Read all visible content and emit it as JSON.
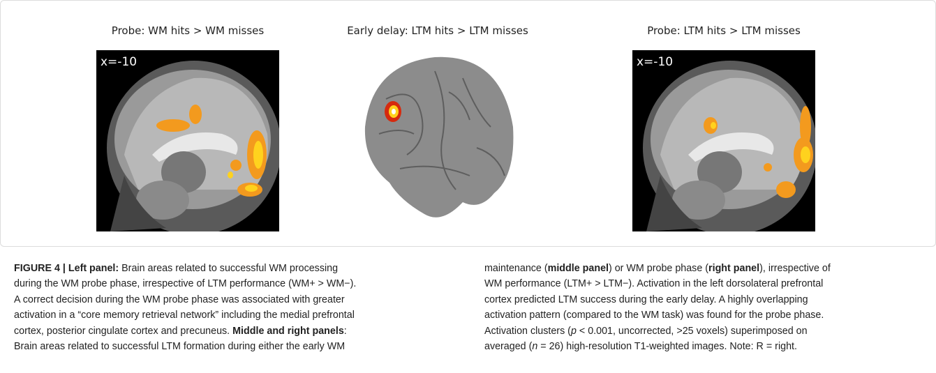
{
  "figure": {
    "panels": [
      {
        "title": "Probe: WM hits > WM misses",
        "slice_label": "x=-10"
      },
      {
        "title": "Early delay: LTM hits > LTM misses"
      },
      {
        "title": "Probe: LTM hits > LTM misses",
        "slice_label": "x=-10"
      }
    ],
    "caption": {
      "columns": [
        [
          [
            {
              "text": "FIGURE 4 | Left panel:",
              "bold": true
            },
            {
              "text": " Brain areas related to successful WM processing"
            }
          ],
          [
            {
              "text": "during the WM probe phase, irrespective of LTM performance (WM+ > WM−)."
            }
          ],
          [
            {
              "text": "A correct decision during the WM probe phase was associated with greater"
            }
          ],
          [
            {
              "text": "activation in a “core memory retrieval network” including the medial prefrontal"
            }
          ],
          [
            {
              "text": "cortex, posterior cingulate cortex and precuneus. "
            },
            {
              "text": "Middle and right panels",
              "bold": true
            },
            {
              "text": ":"
            }
          ],
          [
            {
              "text": "Brain areas related to successful LTM formation during either the early WM"
            }
          ]
        ],
        [
          [
            {
              "text": "maintenance ("
            },
            {
              "text": "middle panel",
              "bold": true
            },
            {
              "text": ") or WM probe phase ("
            },
            {
              "text": "right panel",
              "bold": true
            },
            {
              "text": "), irrespective of"
            }
          ],
          [
            {
              "text": "WM performance (LTM+ > LTM−). Activation in the left dorsolateral prefrontal"
            }
          ],
          [
            {
              "text": "cortex predicted LTM success during the early delay. A highly overlapping"
            }
          ],
          [
            {
              "text": "activation pattern (compared to the WM task) was found for the probe phase."
            }
          ],
          [
            {
              "text": "Activation clusters ("
            },
            {
              "text": "p",
              "italic": true
            },
            {
              "text": " < 0.001, uncorrected, >25 voxels) superimposed on"
            }
          ],
          [
            {
              "text": "averaged ("
            },
            {
              "text": "n",
              "italic": true
            },
            {
              "text": " = 26) high-resolution T1-weighted images. Note: R = right."
            }
          ]
        ]
      ]
    }
  }
}
